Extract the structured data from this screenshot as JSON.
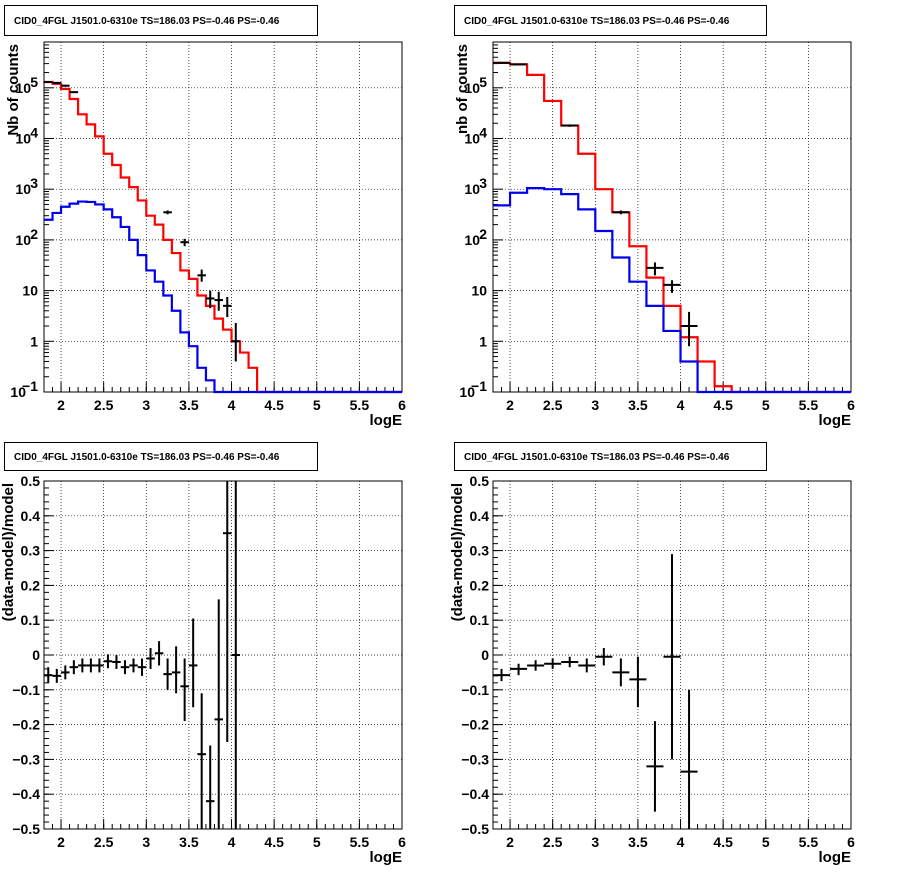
{
  "chart_data": [
    {
      "type": "line",
      "title": "CID0_4FGL J1501.0-6310e TS=186.03 PS=-0.46 PS=-0.46",
      "xlabel": "logE",
      "ylabel": "Nb of counts",
      "yscale": "log",
      "xlim": [
        1.8,
        6.0
      ],
      "ylim": [
        0.1,
        800000
      ],
      "grid": true,
      "x_ticks": [
        "2",
        "2.5",
        "3",
        "3.5",
        "4",
        "4.5",
        "5",
        "5.5",
        "6"
      ],
      "y_ticks": [
        {
          "v": 100000,
          "base": "10",
          "exp": "5"
        },
        {
          "v": 10000,
          "base": "10",
          "exp": "4"
        },
        {
          "v": 1000,
          "base": "10",
          "exp": "3"
        },
        {
          "v": 100,
          "base": "10",
          "exp": "2"
        },
        {
          "v": 10,
          "base": "10",
          "exp": ""
        },
        {
          "v": 1,
          "base": "1",
          "exp": ""
        },
        {
          "v": 0.1,
          "base": "10",
          "exp": "−1"
        }
      ],
      "series": [
        {
          "color": "#ff0000",
          "style": "step",
          "edges": [
            1.8,
            1.9,
            2.0,
            2.1,
            2.2,
            2.3,
            2.4,
            2.5,
            2.6,
            2.7,
            2.8,
            2.9,
            3.0,
            3.1,
            3.2,
            3.3,
            3.4,
            3.5,
            3.6,
            3.7,
            3.8,
            3.9,
            4.0,
            4.1,
            4.2,
            4.3,
            4.4,
            4.5,
            4.6,
            4.7,
            4.8,
            4.9,
            5.0,
            5.1,
            5.2,
            5.3,
            5.4,
            5.5,
            5.6,
            5.7,
            5.8,
            5.9,
            6.0
          ],
          "values": [
            130000,
            120000,
            95000,
            60000,
            30000,
            19000,
            11000,
            5000,
            3000,
            1700,
            1100,
            600,
            300,
            200,
            100,
            55,
            25,
            17,
            8,
            5,
            2.8,
            1.7,
            1.0,
            0.6,
            0.3,
            0.1,
            0.1,
            0.1,
            0.1,
            0.1,
            0.1,
            0.1,
            0.1,
            0.1,
            0.1,
            0.1,
            0.1,
            0.1,
            0.1,
            0.1,
            0.1,
            0.1
          ]
        },
        {
          "color": "#0000ee",
          "style": "step",
          "edges": [
            1.8,
            1.9,
            2.0,
            2.1,
            2.2,
            2.3,
            2.4,
            2.5,
            2.6,
            2.7,
            2.8,
            2.9,
            3.0,
            3.1,
            3.2,
            3.3,
            3.4,
            3.5,
            3.6,
            3.7,
            3.8,
            3.9,
            4.0,
            4.1,
            4.2,
            4.3,
            4.4,
            4.5,
            4.6,
            4.7,
            4.8,
            4.9,
            5.0,
            5.1,
            5.2,
            5.3,
            5.4,
            5.5,
            5.6,
            5.7,
            5.8,
            5.9,
            6.0
          ],
          "values": [
            250,
            340,
            450,
            520,
            570,
            560,
            500,
            400,
            280,
            180,
            100,
            50,
            25,
            15,
            8,
            4,
            1.5,
            0.8,
            0.3,
            0.17,
            0.1,
            0.1,
            0.1,
            0.1,
            0.1,
            0.1,
            0.1,
            0.1,
            0.1,
            0.1,
            0.1,
            0.1,
            0.1,
            0.1,
            0.1,
            0.1,
            0.1,
            0.1,
            0.1,
            0.1,
            0.1,
            0.1
          ]
        }
      ],
      "points": [
        {
          "x": 1.85,
          "y": 130000,
          "xerr": 0.05,
          "ylo": 125000,
          "yhi": 135000
        },
        {
          "x": 1.95,
          "y": 125000,
          "xerr": 0.05,
          "ylo": 120000,
          "yhi": 130000
        },
        {
          "x": 2.05,
          "y": 110000,
          "xerr": 0.05,
          "ylo": 105000,
          "yhi": 115000
        },
        {
          "x": 2.15,
          "y": 82000,
          "xerr": 0.05,
          "ylo": 79000,
          "yhi": 85000
        },
        {
          "x": 3.25,
          "y": 350,
          "xerr": 0.05,
          "ylo": 320,
          "yhi": 380
        },
        {
          "x": 3.45,
          "y": 90,
          "xerr": 0.05,
          "ylo": 75,
          "yhi": 105
        },
        {
          "x": 3.65,
          "y": 20,
          "xerr": 0.05,
          "ylo": 15,
          "yhi": 26
        },
        {
          "x": 3.75,
          "y": 7,
          "xerr": 0.05,
          "ylo": 4.5,
          "yhi": 10
        },
        {
          "x": 3.85,
          "y": 6.5,
          "xerr": 0.05,
          "ylo": 4,
          "yhi": 9.5
        },
        {
          "x": 3.95,
          "y": 5,
          "xerr": 0.05,
          "ylo": 3,
          "yhi": 7.5
        },
        {
          "x": 4.05,
          "y": 1.0,
          "xerr": 0.05,
          "ylo": 0.4,
          "yhi": 2.3
        }
      ]
    },
    {
      "type": "line",
      "title": "CID0_4FGL J1501.0-6310e TS=186.03 PS=-0.46 PS=-0.46",
      "xlabel": "logE",
      "ylabel": "nb of counts",
      "yscale": "log",
      "xlim": [
        1.8,
        6.0
      ],
      "ylim": [
        0.1,
        800000
      ],
      "grid": true,
      "x_ticks": [
        "2",
        "2.5",
        "3",
        "3.5",
        "4",
        "4.5",
        "5",
        "5.5",
        "6"
      ],
      "y_ticks": [
        {
          "v": 100000,
          "base": "10",
          "exp": "5"
        },
        {
          "v": 10000,
          "base": "10",
          "exp": "4"
        },
        {
          "v": 1000,
          "base": "10",
          "exp": "3"
        },
        {
          "v": 100,
          "base": "10",
          "exp": "2"
        },
        {
          "v": 10,
          "base": "10",
          "exp": ""
        },
        {
          "v": 1,
          "base": "1",
          "exp": ""
        },
        {
          "v": 0.1,
          "base": "10",
          "exp": "−1"
        }
      ],
      "series": [
        {
          "color": "#ff0000",
          "style": "step",
          "edges": [
            1.8,
            2.0,
            2.2,
            2.4,
            2.6,
            2.8,
            3.0,
            3.2,
            3.4,
            3.6,
            3.8,
            4.0,
            4.2,
            4.4,
            4.6,
            4.8,
            5.0,
            5.2,
            5.4,
            5.6,
            5.8,
            6.0
          ],
          "values": [
            310000,
            290000,
            180000,
            55000,
            18000,
            5000,
            1000,
            350,
            75,
            18,
            5,
            1.2,
            0.4,
            0.13,
            0.1,
            0.1,
            0.1,
            0.1,
            0.1,
            0.1,
            0.1
          ]
        },
        {
          "color": "#0000ee",
          "style": "step",
          "edges": [
            1.8,
            2.0,
            2.2,
            2.4,
            2.6,
            2.8,
            3.0,
            3.2,
            3.4,
            3.6,
            3.8,
            4.0,
            4.2,
            4.4,
            4.6,
            4.8,
            5.0,
            5.2,
            5.4,
            5.6,
            5.8,
            6.0
          ],
          "values": [
            480,
            850,
            1050,
            1000,
            800,
            400,
            150,
            45,
            15,
            5,
            1.6,
            0.4,
            0.1,
            0.1,
            0.1,
            0.1,
            0.1,
            0.1,
            0.1,
            0.1,
            0.1
          ]
        }
      ],
      "points": [
        {
          "x": 1.9,
          "y": 310000,
          "xerr": 0.1,
          "ylo": 300000,
          "yhi": 320000
        },
        {
          "x": 2.1,
          "y": 290000,
          "xerr": 0.1,
          "ylo": 280000,
          "yhi": 300000
        },
        {
          "x": 2.7,
          "y": 18000,
          "xerr": 0.1,
          "ylo": 17000,
          "yhi": 19000
        },
        {
          "x": 3.3,
          "y": 350,
          "xerr": 0.1,
          "ylo": 320,
          "yhi": 380
        },
        {
          "x": 3.7,
          "y": 28,
          "xerr": 0.1,
          "ylo": 20,
          "yhi": 36
        },
        {
          "x": 3.9,
          "y": 13,
          "xerr": 0.1,
          "ylo": 9,
          "yhi": 16
        },
        {
          "x": 4.1,
          "y": 2.0,
          "xerr": 0.1,
          "ylo": 0.8,
          "yhi": 3.8
        }
      ]
    },
    {
      "type": "scatter",
      "title": "CID0_4FGL J1501.0-6310e TS=186.03 PS=-0.46 PS=-0.46",
      "xlabel": "logE",
      "ylabel": "(data-model)/model",
      "yscale": "linear",
      "xlim": [
        1.8,
        6.0
      ],
      "ylim": [
        -0.5,
        0.5
      ],
      "grid": true,
      "x_ticks": [
        "2",
        "2.5",
        "3",
        "3.5",
        "4",
        "4.5",
        "5",
        "5.5",
        "6"
      ],
      "y_ticks": [
        "0.5",
        "0.4",
        "0.3",
        "0.2",
        "0.1",
        "0",
        "−0.1",
        "−0.2",
        "−0.3",
        "−0.4",
        "−0.5"
      ],
      "points": [
        {
          "x": 1.85,
          "y": -0.058,
          "xerr": 0.05,
          "ylo": -0.08,
          "yhi": -0.035
        },
        {
          "x": 1.95,
          "y": -0.06,
          "xerr": 0.05,
          "ylo": -0.08,
          "yhi": -0.04
        },
        {
          "x": 2.05,
          "y": -0.05,
          "xerr": 0.05,
          "ylo": -0.07,
          "yhi": -0.03
        },
        {
          "x": 2.15,
          "y": -0.035,
          "xerr": 0.05,
          "ylo": -0.055,
          "yhi": -0.015
        },
        {
          "x": 2.25,
          "y": -0.03,
          "xerr": 0.05,
          "ylo": -0.05,
          "yhi": -0.01
        },
        {
          "x": 2.35,
          "y": -0.03,
          "xerr": 0.05,
          "ylo": -0.05,
          "yhi": -0.01
        },
        {
          "x": 2.45,
          "y": -0.03,
          "xerr": 0.05,
          "ylo": -0.05,
          "yhi": -0.01
        },
        {
          "x": 2.55,
          "y": -0.018,
          "xerr": 0.05,
          "ylo": -0.038,
          "yhi": 0.002
        },
        {
          "x": 2.65,
          "y": -0.02,
          "xerr": 0.05,
          "ylo": -0.04,
          "yhi": 0.0
        },
        {
          "x": 2.75,
          "y": -0.035,
          "xerr": 0.05,
          "ylo": -0.055,
          "yhi": -0.015
        },
        {
          "x": 2.85,
          "y": -0.03,
          "xerr": 0.05,
          "ylo": -0.05,
          "yhi": -0.01
        },
        {
          "x": 2.95,
          "y": -0.035,
          "xerr": 0.05,
          "ylo": -0.06,
          "yhi": -0.01
        },
        {
          "x": 3.05,
          "y": -0.01,
          "xerr": 0.05,
          "ylo": -0.04,
          "yhi": 0.02
        },
        {
          "x": 3.15,
          "y": 0.005,
          "xerr": 0.05,
          "ylo": -0.03,
          "yhi": 0.04
        },
        {
          "x": 3.25,
          "y": -0.055,
          "xerr": 0.05,
          "ylo": -0.1,
          "yhi": -0.01
        },
        {
          "x": 3.35,
          "y": -0.05,
          "xerr": 0.05,
          "ylo": -0.11,
          "yhi": 0.025
        },
        {
          "x": 3.45,
          "y": -0.09,
          "xerr": 0.05,
          "ylo": -0.19,
          "yhi": -0.01
        },
        {
          "x": 3.55,
          "y": -0.03,
          "xerr": 0.05,
          "ylo": -0.15,
          "yhi": 0.105
        },
        {
          "x": 3.65,
          "y": -0.285,
          "xerr": 0.05,
          "ylo": -0.5,
          "yhi": -0.11
        },
        {
          "x": 3.75,
          "y": -0.42,
          "xerr": 0.05,
          "ylo": -0.5,
          "yhi": -0.26
        },
        {
          "x": 3.85,
          "y": -0.185,
          "xerr": 0.05,
          "ylo": -0.5,
          "yhi": 0.16
        },
        {
          "x": 3.95,
          "y": 0.35,
          "xerr": 0.05,
          "ylo": -0.25,
          "yhi": 0.5
        },
        {
          "x": 4.05,
          "y": 0.0,
          "xerr": 0.05,
          "ylo": -0.5,
          "yhi": 0.5
        }
      ]
    },
    {
      "type": "scatter",
      "title": "CID0_4FGL J1501.0-6310e TS=186.03 PS=-0.46 PS=-0.46",
      "xlabel": "logE",
      "ylabel": "(data-model)/model",
      "yscale": "linear",
      "xlim": [
        1.8,
        6.0
      ],
      "ylim": [
        -0.5,
        0.5
      ],
      "grid": true,
      "x_ticks": [
        "2",
        "2.5",
        "3",
        "3.5",
        "4",
        "4.5",
        "5",
        "5.5",
        "6"
      ],
      "y_ticks": [
        "0.5",
        "0.4",
        "0.3",
        "0.2",
        "0.1",
        "0",
        "−0.1",
        "−0.2",
        "−0.3",
        "−0.4",
        "−0.5"
      ],
      "points": [
        {
          "x": 1.9,
          "y": -0.058,
          "xerr": 0.1,
          "ylo": -0.075,
          "yhi": -0.04
        },
        {
          "x": 2.1,
          "y": -0.04,
          "xerr": 0.1,
          "ylo": -0.058,
          "yhi": -0.025
        },
        {
          "x": 2.3,
          "y": -0.03,
          "xerr": 0.1,
          "ylo": -0.045,
          "yhi": -0.015
        },
        {
          "x": 2.5,
          "y": -0.025,
          "xerr": 0.1,
          "ylo": -0.04,
          "yhi": -0.01
        },
        {
          "x": 2.7,
          "y": -0.02,
          "xerr": 0.1,
          "ylo": -0.035,
          "yhi": -0.005
        },
        {
          "x": 2.9,
          "y": -0.03,
          "xerr": 0.1,
          "ylo": -0.05,
          "yhi": -0.01
        },
        {
          "x": 3.1,
          "y": -0.005,
          "xerr": 0.1,
          "ylo": -0.03,
          "yhi": 0.02
        },
        {
          "x": 3.3,
          "y": -0.05,
          "xerr": 0.1,
          "ylo": -0.09,
          "yhi": -0.01
        },
        {
          "x": 3.5,
          "y": -0.07,
          "xerr": 0.1,
          "ylo": -0.15,
          "yhi": -0.005
        },
        {
          "x": 3.7,
          "y": -0.32,
          "xerr": 0.1,
          "ylo": -0.45,
          "yhi": -0.19
        },
        {
          "x": 3.9,
          "y": -0.005,
          "xerr": 0.1,
          "ylo": -0.3,
          "yhi": 0.29
        },
        {
          "x": 4.1,
          "y": -0.335,
          "xerr": 0.1,
          "ylo": -0.5,
          "yhi": -0.1
        }
      ]
    }
  ]
}
